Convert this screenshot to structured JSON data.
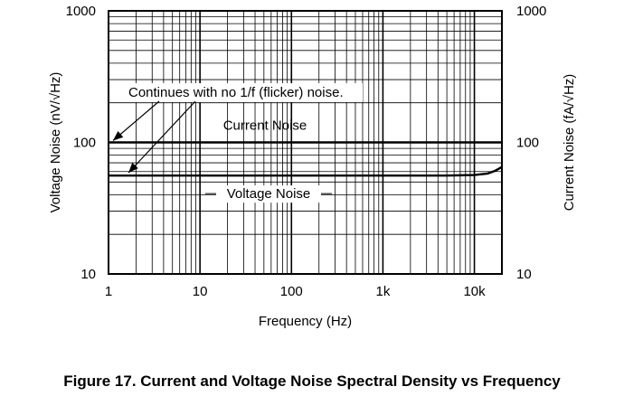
{
  "chart_data": {
    "type": "line",
    "title": "Figure 17. Current and Voltage Noise Spectral Density vs Frequency",
    "xlabel": "Frequency (Hz)",
    "ylabel_left": "Voltage Noise (nV/√Hz)",
    "ylabel_right": "Current Noise (fA/√Hz)",
    "x_scale": "log",
    "y_scale": "log",
    "xlim": [
      1,
      20000
    ],
    "ylim": [
      10,
      1000
    ],
    "grid": true,
    "x_ticks": [
      {
        "value": 1,
        "label": "1"
      },
      {
        "value": 10,
        "label": "10"
      },
      {
        "value": 100,
        "label": "100"
      },
      {
        "value": 1000,
        "label": "1k"
      },
      {
        "value": 10000,
        "label": "10k"
      }
    ],
    "y_ticks_left": [
      {
        "value": 10,
        "label": "10"
      },
      {
        "value": 100,
        "label": "100"
      },
      {
        "value": 1000,
        "label": "1000"
      }
    ],
    "y_ticks_right": [
      {
        "value": 10,
        "label": "10"
      },
      {
        "value": 100,
        "label": "100"
      },
      {
        "value": 1000,
        "label": "1000"
      }
    ],
    "series": [
      {
        "name": "Current Noise",
        "x": [
          1,
          10,
          100,
          1000,
          10000,
          20000
        ],
        "y": [
          100,
          100,
          100,
          100,
          100,
          100
        ]
      },
      {
        "name": "Voltage Noise",
        "x": [
          1,
          10,
          100,
          1000,
          5000,
          10000,
          14000,
          17000,
          20000
        ],
        "y": [
          56,
          56,
          56,
          56,
          56,
          56.5,
          58,
          61,
          65
        ]
      }
    ],
    "annotation": "Continues with no 1/f (flicker) noise."
  }
}
